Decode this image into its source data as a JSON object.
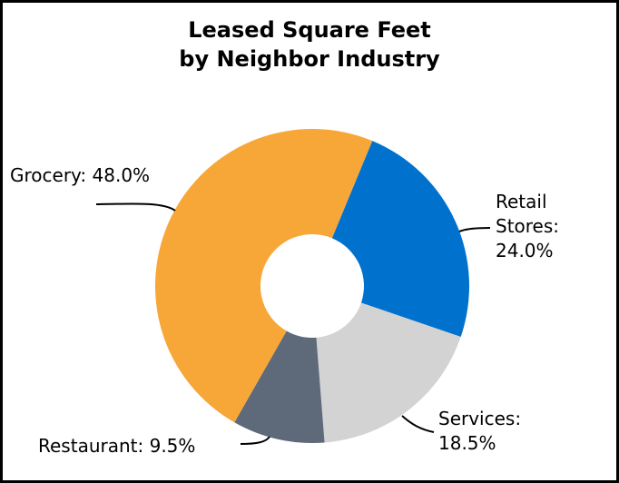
{
  "chart_data": {
    "type": "pie",
    "style": "donut",
    "title_lines": [
      "Leased Square Feet",
      "by Neighbor Industry"
    ],
    "slices": [
      {
        "name": "Retail Stores",
        "value": 24.0,
        "label_lines": [
          "Retail",
          "Stores:",
          "24.0%"
        ],
        "color": "#0072CE"
      },
      {
        "name": "Services",
        "value": 18.5,
        "label_lines": [
          "Services:",
          "18.5%"
        ],
        "color": "#D3D3D3"
      },
      {
        "name": "Restaurant",
        "value": 9.5,
        "label_lines": [
          "Restaurant: 9.5%"
        ],
        "color": "#5E6A7A"
      },
      {
        "name": "Grocery",
        "value": 48.0,
        "label_lines": [
          "Grocery: 48.0%"
        ],
        "color": "#F7A738"
      }
    ],
    "legend": "none"
  }
}
